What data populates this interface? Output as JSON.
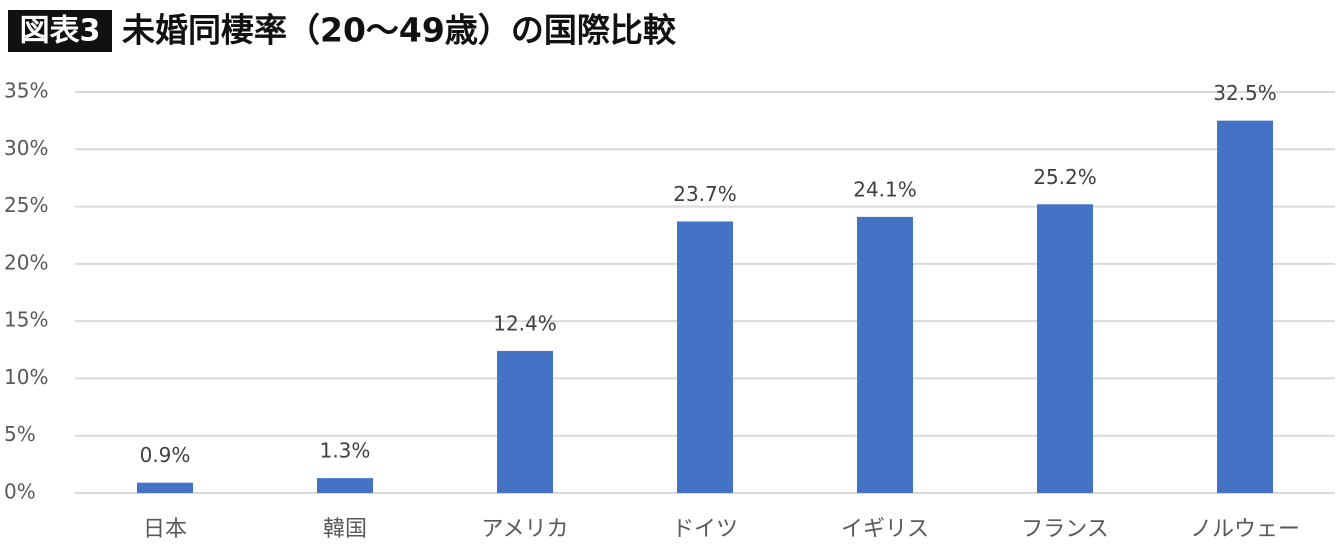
{
  "chart_data": {
    "type": "bar",
    "badge": "図表3",
    "title": "未婚同棲率（20〜49歳）の国際比較",
    "categories": [
      "日本",
      "韓国",
      "アメリカ",
      "ドイツ",
      "イギリス",
      "フランス",
      "ノルウェー"
    ],
    "values": [
      0.9,
      1.3,
      12.4,
      23.7,
      24.1,
      25.2,
      32.5
    ],
    "value_labels": [
      "0.9%",
      "1.3%",
      "12.4%",
      "23.7%",
      "24.1%",
      "25.2%",
      "32.5%"
    ],
    "color": "#4472c4",
    "ylim": [
      0,
      35
    ],
    "yticks": [
      {
        "value": 0,
        "label": "0%"
      },
      {
        "value": 5,
        "label": "5%"
      },
      {
        "value": 10,
        "label": "10%"
      },
      {
        "value": 15,
        "label": "15%"
      },
      {
        "value": 20,
        "label": "20%"
      },
      {
        "value": 25,
        "label": "25%"
      },
      {
        "value": 30,
        "label": "30%"
      },
      {
        "value": 35,
        "label": "35%"
      }
    ],
    "grid": true
  }
}
